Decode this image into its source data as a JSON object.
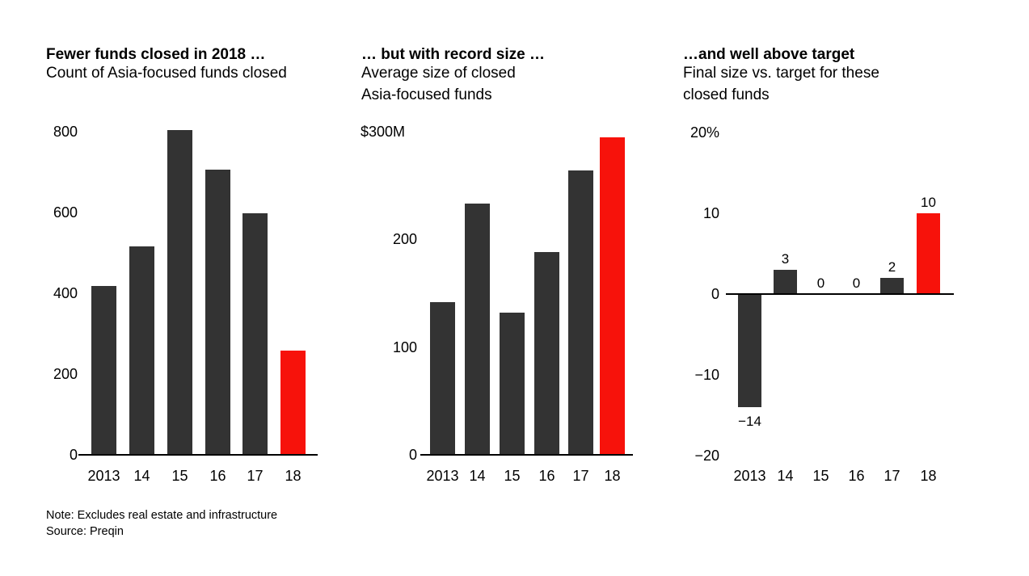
{
  "colors": {
    "bar": "#333333",
    "highlight": "#f7120b",
    "axis": "#000000",
    "text": "#000000",
    "background": "#ffffff"
  },
  "footer": {
    "note": "Note: Excludes real estate and infrastructure",
    "source": "Source: Preqin"
  },
  "chart_data": [
    {
      "type": "bar",
      "title": "Fewer funds closed in 2018 …",
      "subtitle_lines": [
        "Count of Asia-focused funds closed"
      ],
      "ylabel": "Count of Asia-focused funds closed",
      "xlabel": "",
      "categories": [
        "2013",
        "14",
        "15",
        "16",
        "17",
        "18"
      ],
      "values": [
        418,
        516,
        805,
        706,
        598,
        258
      ],
      "highlight_index": 5,
      "ylim": [
        0,
        800
      ],
      "yticks": [
        {
          "value": 800,
          "label": "800"
        },
        {
          "value": 600,
          "label": "600"
        },
        {
          "value": 400,
          "label": "400"
        },
        {
          "value": 200,
          "label": "200"
        },
        {
          "value": 0,
          "label": "0"
        }
      ],
      "data_labels": null,
      "grid": false,
      "legend": null
    },
    {
      "type": "bar",
      "title": "… but with record size …",
      "subtitle_lines": [
        "Average size of closed",
        "Asia-focused funds"
      ],
      "ylabel": "Average size of closed Asia-focused funds ($M)",
      "xlabel": "",
      "categories": [
        "2013",
        "14",
        "15",
        "16",
        "17",
        "18"
      ],
      "values": [
        142,
        233,
        132,
        188,
        264,
        295
      ],
      "highlight_index": 5,
      "ylim": [
        0,
        300
      ],
      "yticks": [
        {
          "value": 300,
          "label": "$300M",
          "align": "panel-left"
        },
        {
          "value": 200,
          "label": "200"
        },
        {
          "value": 100,
          "label": "100"
        },
        {
          "value": 0,
          "label": "0"
        }
      ],
      "data_labels": null,
      "grid": false,
      "legend": null
    },
    {
      "type": "bar",
      "title": "…and well above target",
      "subtitle_lines": [
        "Final size vs. target for these",
        "closed funds"
      ],
      "ylabel": "Final size vs. target for these closed funds (%)",
      "xlabel": "",
      "categories": [
        "2013",
        "14",
        "15",
        "16",
        "17",
        "18"
      ],
      "values": [
        -14,
        3,
        0,
        0,
        2,
        10
      ],
      "highlight_index": 5,
      "ylim": [
        -20,
        20
      ],
      "yticks": [
        {
          "value": 20,
          "label": "20%"
        },
        {
          "value": 10,
          "label": "10"
        },
        {
          "value": 0,
          "label": "0"
        },
        {
          "value": -10,
          "label": "−10"
        },
        {
          "value": -20,
          "label": "−20"
        }
      ],
      "data_labels": [
        "−14",
        "3",
        "0",
        "0",
        "2",
        "10"
      ],
      "grid": false,
      "legend": null
    }
  ]
}
